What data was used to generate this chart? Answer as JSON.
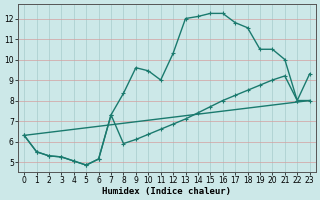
{
  "xlabel": "Humidex (Indice chaleur)",
  "xlim": [
    -0.5,
    23.5
  ],
  "ylim": [
    4.5,
    12.7
  ],
  "yticks": [
    5,
    6,
    7,
    8,
    9,
    10,
    11,
    12
  ],
  "xticks": [
    0,
    1,
    2,
    3,
    4,
    5,
    6,
    7,
    8,
    9,
    10,
    11,
    12,
    13,
    14,
    15,
    16,
    17,
    18,
    19,
    20,
    21,
    22,
    23
  ],
  "line_color": "#1a7a6e",
  "background_color": "#cce8e8",
  "grid_color_h": "#d4a0a0",
  "grid_color_v": "#a8cccc",
  "line1_x": [
    0,
    1,
    2,
    3,
    4,
    5,
    6,
    7,
    8,
    9,
    10,
    11,
    12,
    13,
    14,
    15,
    16,
    17,
    18,
    19,
    20,
    21,
    22,
    23
  ],
  "line1_y": [
    6.3,
    5.5,
    5.3,
    5.25,
    5.05,
    4.85,
    5.15,
    7.3,
    8.35,
    9.6,
    9.45,
    9.0,
    10.3,
    12.0,
    12.1,
    12.25,
    12.25,
    11.8,
    11.55,
    10.5,
    10.5,
    10.0,
    8.0,
    9.3
  ],
  "line2_x": [
    0,
    1,
    2,
    3,
    4,
    5,
    6,
    7,
    8,
    9,
    10,
    11,
    12,
    13,
    14,
    15,
    16,
    17,
    18,
    19,
    20,
    21,
    22,
    23
  ],
  "line2_y": [
    6.3,
    5.5,
    5.3,
    5.25,
    5.05,
    4.85,
    5.15,
    7.3,
    5.9,
    6.1,
    6.35,
    6.6,
    6.85,
    7.1,
    7.4,
    7.7,
    8.0,
    8.25,
    8.5,
    8.75,
    9.0,
    9.2,
    8.0,
    8.0
  ],
  "line3_x": [
    0,
    23
  ],
  "line3_y": [
    6.3,
    8.0
  ]
}
